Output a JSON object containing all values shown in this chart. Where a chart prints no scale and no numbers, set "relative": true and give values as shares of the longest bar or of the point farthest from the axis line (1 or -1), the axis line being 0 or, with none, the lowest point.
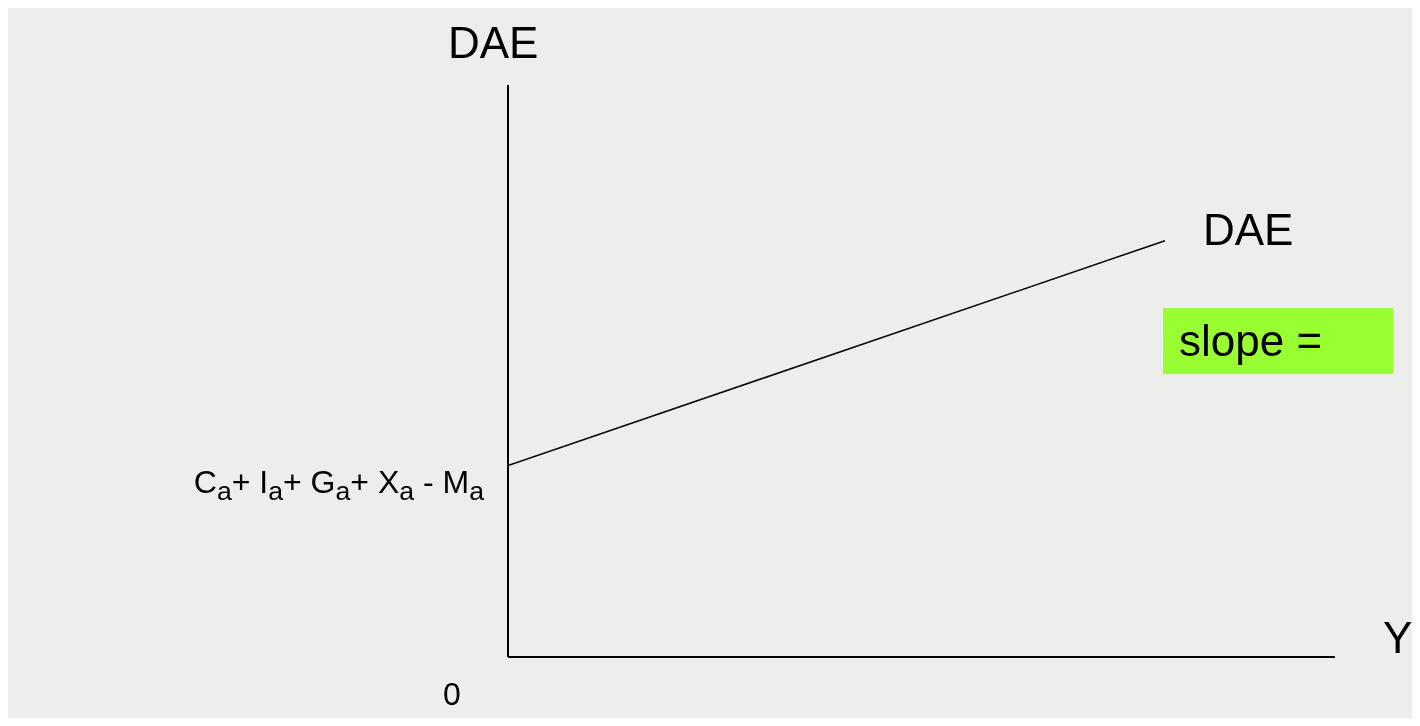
{
  "chart_data": {
    "type": "line",
    "relative": true,
    "ylabel": "DAE",
    "xlabel": "Y",
    "categories": [
      null,
      null
    ],
    "series": [
      {
        "name": "DAE",
        "color": "#000000",
        "values": [
          0.46,
          1
        ]
      }
    ],
    "annotations": [
      "C$_{a}$+ I$_{a}$+ G$_{a}$+ X$_{a}$ - M$_{a}$",
      "0",
      "slope ="
    ],
    "marker": "none"
  }
}
